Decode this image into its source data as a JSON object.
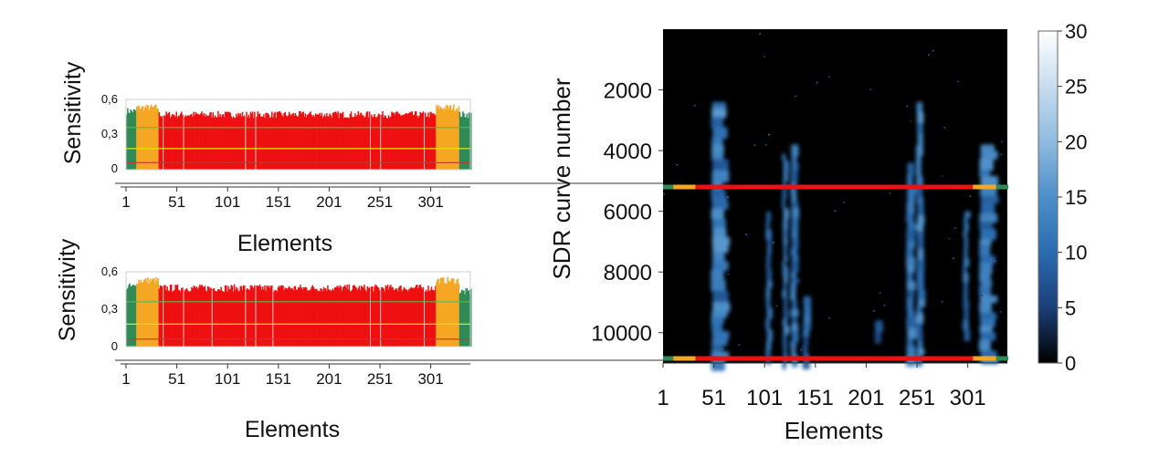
{
  "figure": {
    "connector_color": "#9a9a9a"
  },
  "chart_data": [
    {
      "type": "bar",
      "subtype": "sensitivity-histogram",
      "ylabel": "Sensitivity",
      "xlabel": "Elements",
      "ylim": [
        0,
        0.6
      ],
      "yticks": [
        "0",
        "0,3",
        "0,6"
      ],
      "xticks": [
        "1",
        "51",
        "101",
        "151",
        "201",
        "251",
        "301"
      ],
      "xtick_values": [
        1,
        51,
        101,
        151,
        201,
        251,
        301
      ],
      "xlim": [
        1,
        340
      ],
      "reference_lines": [
        {
          "value": 0.06,
          "color": "#c0392b"
        },
        {
          "value": 0.18,
          "color": "#e5e500"
        },
        {
          "value": 0.36,
          "color": "#5ab552"
        }
      ],
      "zones": [
        {
          "from": 1,
          "to": 10,
          "color": "#2e8b57",
          "level": 0.5
        },
        {
          "from": 11,
          "to": 32,
          "color": "#f5a623",
          "level": 0.53
        },
        {
          "from": 33,
          "to": 305,
          "color": "#ee1111",
          "level": 0.47
        },
        {
          "from": 306,
          "to": 328,
          "color": "#f5a623",
          "level": 0.53
        },
        {
          "from": 329,
          "to": 340,
          "color": "#2e8b57",
          "level": 0.47
        }
      ],
      "gaps": [
        37,
        57,
        118,
        128,
        241,
        251,
        294
      ]
    },
    {
      "type": "bar",
      "subtype": "sensitivity-histogram",
      "ylabel": "Sensitivity",
      "xlabel": "Elements",
      "ylim": [
        0,
        0.6
      ],
      "yticks": [
        "0",
        "0,3",
        "0,6"
      ],
      "xticks": [
        "1",
        "51",
        "101",
        "151",
        "201",
        "251",
        "301"
      ],
      "xtick_values": [
        1,
        51,
        101,
        151,
        201,
        251,
        301
      ],
      "xlim": [
        1,
        340
      ],
      "reference_lines": [
        {
          "value": 0.06,
          "color": "#c0392b"
        },
        {
          "value": 0.18,
          "color": "#e5e500"
        },
        {
          "value": 0.36,
          "color": "#5ab552"
        }
      ],
      "zones": [
        {
          "from": 1,
          "to": 10,
          "color": "#2e8b57",
          "level": 0.48
        },
        {
          "from": 11,
          "to": 32,
          "color": "#f5a623",
          "level": 0.53
        },
        {
          "from": 33,
          "to": 305,
          "color": "#ee1111",
          "level": 0.47
        },
        {
          "from": 306,
          "to": 328,
          "color": "#f5a623",
          "level": 0.53
        },
        {
          "from": 329,
          "to": 340,
          "color": "#2e8b57",
          "level": 0.44
        }
      ],
      "gaps": [
        37,
        57,
        85,
        118,
        128,
        145,
        241,
        251,
        294
      ]
    },
    {
      "type": "heatmap",
      "xlabel": "Elements",
      "ylabel": "SDR curve number",
      "xticks": [
        "1",
        "51",
        "101",
        "151",
        "201",
        "251",
        "301"
      ],
      "xtick_values": [
        1,
        51,
        101,
        151,
        201,
        251,
        301
      ],
      "xlim": [
        1,
        340
      ],
      "yticks": [
        "2000",
        "4000",
        "6000",
        "8000",
        "10000"
      ],
      "ytick_values": [
        2000,
        4000,
        6000,
        8000,
        10000
      ],
      "ylim": [
        0,
        11000
      ],
      "colorbar": {
        "ticks": [
          "0",
          "5",
          "10",
          "15",
          "20",
          "25",
          "30"
        ],
        "tick_values": [
          0,
          5,
          10,
          15,
          20,
          25,
          30
        ],
        "range": [
          0,
          30
        ],
        "colors": [
          "#000000",
          "#1b3f77",
          "#2a6cb0",
          "#4d8fc9",
          "#8fbbe0",
          "#c7dcef",
          "#ffffff"
        ]
      },
      "background": "#000000",
      "highlight_rows": [
        {
          "curve": 5200,
          "color": "#ee1111"
        },
        {
          "curve": 10850,
          "color": "#ee1111"
        }
      ],
      "hotspot_columns": [
        {
          "from": 48,
          "to": 66,
          "start": 2400,
          "end": 11000,
          "level": 14
        },
        {
          "from": 102,
          "to": 108,
          "start": 6000,
          "end": 11000,
          "level": 12
        },
        {
          "from": 118,
          "to": 124,
          "start": 4100,
          "end": 11000,
          "level": 13
        },
        {
          "from": 126,
          "to": 134,
          "start": 3800,
          "end": 11000,
          "level": 13
        },
        {
          "from": 138,
          "to": 146,
          "start": 8800,
          "end": 11000,
          "level": 11
        },
        {
          "from": 208,
          "to": 216,
          "start": 9600,
          "end": 10300,
          "level": 9
        },
        {
          "from": 240,
          "to": 250,
          "start": 4400,
          "end": 11000,
          "level": 13
        },
        {
          "from": 250,
          "to": 258,
          "start": 2400,
          "end": 11000,
          "level": 14
        },
        {
          "from": 296,
          "to": 302,
          "start": 6000,
          "end": 10000,
          "level": 12
        },
        {
          "from": 312,
          "to": 330,
          "start": 3800,
          "end": 11000,
          "level": 14
        }
      ]
    }
  ]
}
